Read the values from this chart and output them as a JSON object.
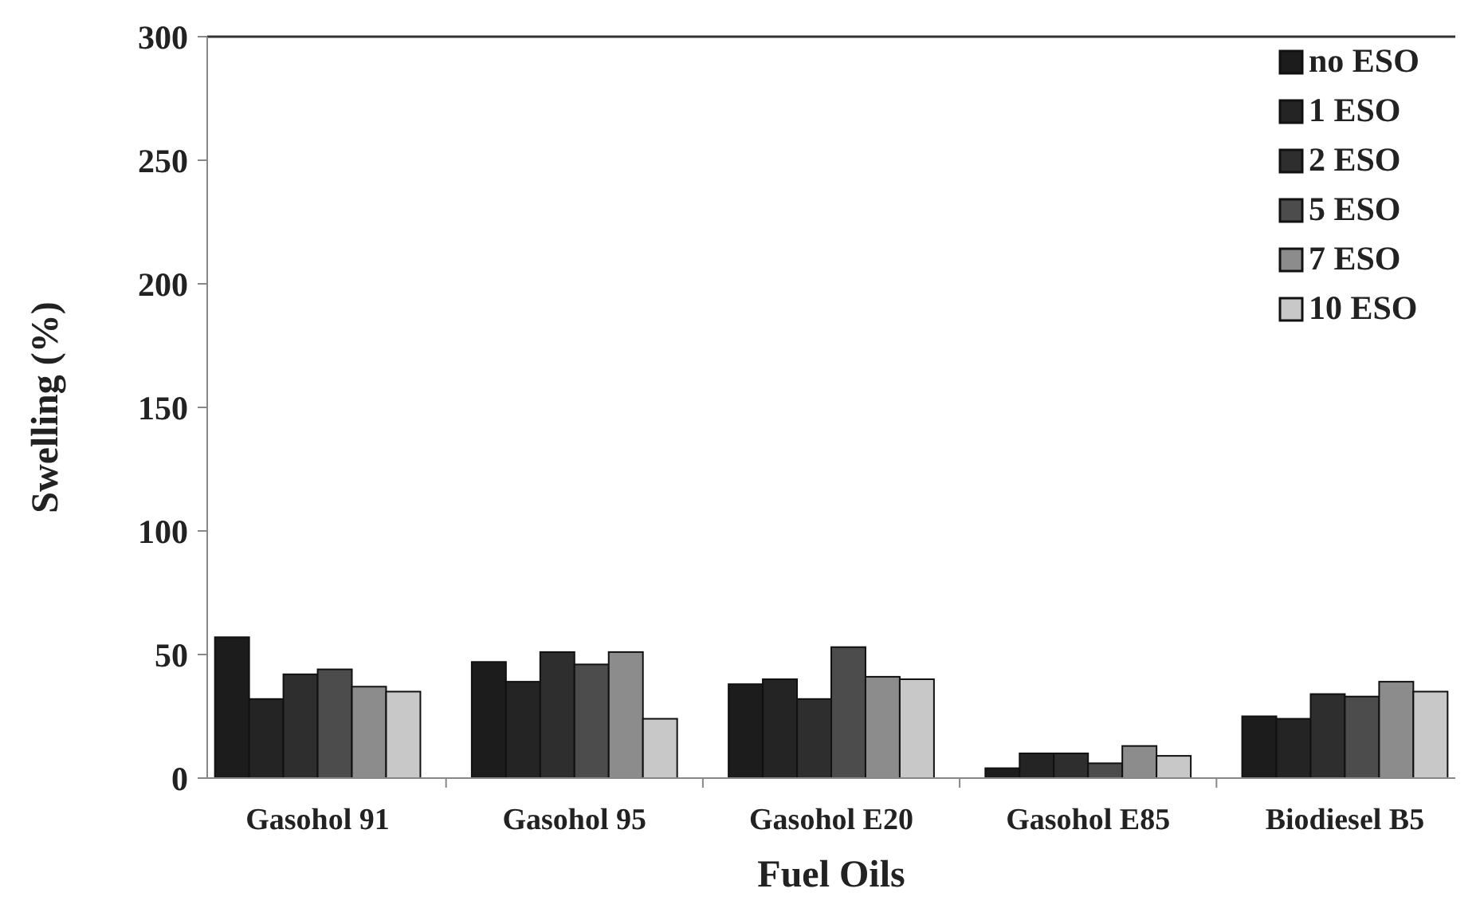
{
  "chart_data": {
    "type": "bar",
    "xlabel": "Fuel Oils",
    "ylabel": "Swelling (%)",
    "categories": [
      "Gasohol 91",
      "Gasohol 95",
      "Gasohol E20",
      "Gasohol E85",
      "Biodiesel B5"
    ],
    "series": [
      {
        "name": "no ESO",
        "color": "#1c1c1c",
        "values": [
          57,
          47,
          38,
          4,
          25
        ]
      },
      {
        "name": "1 ESO",
        "color": "#242424",
        "values": [
          32,
          39,
          40,
          10,
          24
        ]
      },
      {
        "name": "2 ESO",
        "color": "#2e2e2e",
        "values": [
          42,
          51,
          32,
          10,
          34
        ]
      },
      {
        "name": "5 ESO",
        "color": "#4c4c4c",
        "values": [
          44,
          46,
          53,
          6,
          33
        ]
      },
      {
        "name": "7 ESO",
        "color": "#8c8c8c",
        "values": [
          37,
          51,
          41,
          13,
          39
        ]
      },
      {
        "name": "10 ESO",
        "color": "#c8c8c8",
        "values": [
          35,
          24,
          40,
          9,
          35
        ]
      }
    ],
    "ylim": [
      0,
      300
    ],
    "yticks": [
      0,
      50,
      100,
      150,
      200,
      250,
      300
    ],
    "grid": false,
    "legend": "top right"
  }
}
